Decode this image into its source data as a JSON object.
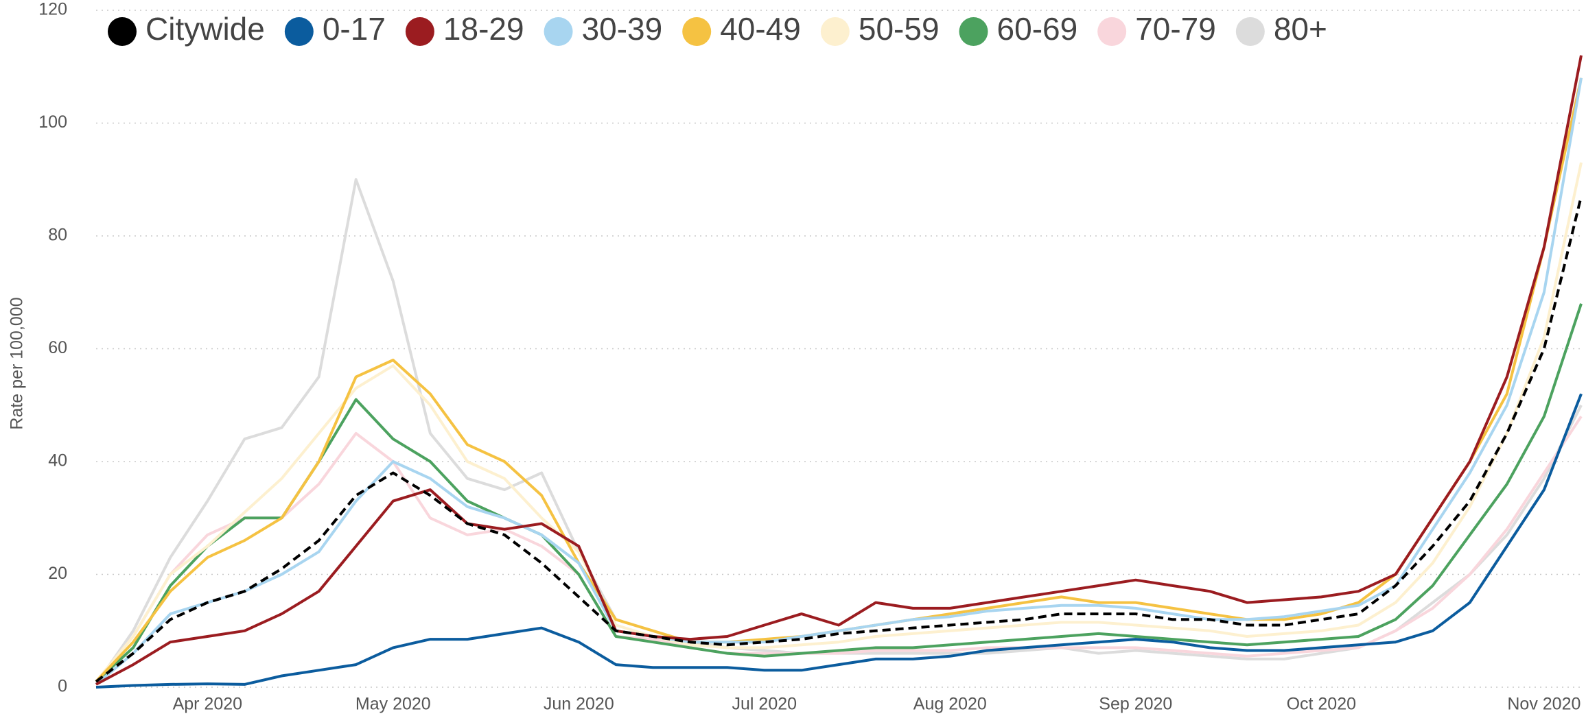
{
  "chart_data": {
    "type": "line",
    "y_label": "Rate per 100,000",
    "categories": [
      null,
      null,
      null,
      "Apr 2020",
      null,
      null,
      null,
      null,
      "May 2020",
      null,
      null,
      null,
      null,
      "Jun 2020",
      null,
      null,
      null,
      null,
      "Jul 2020",
      null,
      null,
      null,
      null,
      "Aug 2020",
      null,
      null,
      null,
      null,
      "Sep 2020",
      null,
      null,
      null,
      null,
      "Oct 2020",
      null,
      null,
      null,
      null,
      null,
      "Nov 2020",
      null
    ],
    "ylim": [
      0,
      120
    ],
    "yticks": [
      0,
      20,
      40,
      60,
      80,
      100,
      120
    ],
    "grid": true,
    "series": [
      {
        "name": "Citywide",
        "color": "#000000",
        "dashed": true,
        "values": [
          1,
          6,
          12,
          15,
          17,
          21,
          26,
          34,
          38,
          34,
          29,
          27,
          22,
          16,
          10,
          9,
          8,
          7.5,
          8,
          8.5,
          9.5,
          10,
          10.5,
          11,
          11.5,
          12,
          13,
          13,
          13,
          12,
          12,
          11,
          11,
          12,
          13,
          18,
          25,
          33,
          45,
          60,
          87
        ]
      },
      {
        "name": "0-17",
        "color": "#0b5c9e",
        "values": [
          0,
          0.3,
          0.5,
          0.6,
          0.5,
          2,
          3,
          4,
          7,
          8.5,
          8.5,
          9.5,
          10.5,
          8,
          4,
          3.5,
          3.5,
          3.5,
          3,
          3,
          4,
          5,
          5,
          5.5,
          6.5,
          7,
          7.5,
          8,
          8.5,
          8,
          7,
          6.5,
          6.5,
          7,
          7.5,
          8,
          10,
          15,
          25,
          35,
          52
        ]
      },
      {
        "name": "18-29",
        "color": "#9b1c20",
        "values": [
          0.5,
          4,
          8,
          9,
          10,
          13,
          17,
          25,
          33,
          35,
          29,
          28,
          29,
          25,
          10,
          9,
          8.5,
          9,
          11,
          13,
          11,
          15,
          14,
          14,
          15,
          16,
          17,
          18,
          19,
          18,
          17,
          15,
          15.5,
          16,
          17,
          20,
          30,
          40,
          55,
          78,
          112
        ]
      },
      {
        "name": "30-39",
        "color": "#a8d5f0",
        "values": [
          0.5,
          6,
          13,
          15,
          17,
          20,
          24,
          33,
          40,
          37,
          32,
          30,
          27,
          22,
          10,
          9,
          8,
          8,
          8,
          9,
          10,
          11,
          12,
          12.5,
          13.5,
          14,
          14.5,
          14.5,
          14,
          13,
          12,
          12,
          12.5,
          13.5,
          14.5,
          18,
          28,
          38,
          50,
          70,
          108
        ]
      },
      {
        "name": "40-49",
        "color": "#f5c242",
        "values": [
          1,
          8,
          17,
          23,
          26,
          30,
          40,
          55,
          58,
          52,
          43,
          40,
          34,
          22,
          12,
          10,
          8,
          8,
          8.5,
          9,
          10,
          11,
          12,
          13,
          14,
          15,
          16,
          15,
          15,
          14,
          13,
          12,
          12,
          13,
          15,
          20,
          30,
          40,
          52,
          78,
          108
        ]
      },
      {
        "name": "50-59",
        "color": "#fdf0cf",
        "values": [
          1,
          9,
          20,
          25,
          31,
          37,
          45,
          53,
          57,
          50,
          40,
          37,
          30,
          24,
          11,
          9,
          7.5,
          7,
          7,
          7.5,
          8,
          9,
          9.5,
          10,
          10.5,
          11,
          11.5,
          11.5,
          11,
          10.5,
          10,
          9,
          9.5,
          10,
          11,
          15,
          22,
          32,
          45,
          62,
          93
        ]
      },
      {
        "name": "60-69",
        "color": "#4ca25f",
        "values": [
          1,
          7,
          18,
          25,
          30,
          30,
          40,
          51,
          44,
          40,
          33,
          30,
          27,
          20,
          9,
          8,
          7,
          6,
          5.5,
          6,
          6.5,
          7,
          7,
          7.5,
          8,
          8.5,
          9,
          9.5,
          9,
          8.5,
          8,
          7.5,
          8,
          8.5,
          9,
          12,
          18,
          27,
          36,
          48,
          68
        ]
      },
      {
        "name": "70-79",
        "color": "#f9d6dc",
        "values": [
          1,
          9,
          20,
          27,
          30,
          30,
          36,
          45,
          40,
          30,
          27,
          28,
          25,
          20,
          9,
          8.5,
          7,
          6,
          6,
          6,
          6,
          6.5,
          6.5,
          6.5,
          7,
          7,
          7,
          7,
          7,
          6.5,
          6,
          5.5,
          6,
          6.5,
          7,
          10,
          14,
          20,
          28,
          38,
          48
        ]
      },
      {
        "name": "80+",
        "color": "#dcdcdc",
        "values": [
          0.5,
          10,
          23,
          33,
          44,
          46,
          55,
          90,
          72,
          45,
          37,
          35,
          38,
          24,
          12,
          10,
          8,
          7,
          6.5,
          6,
          6,
          6,
          6,
          6,
          6,
          6.5,
          7,
          6,
          6.5,
          6,
          5.5,
          5,
          5,
          6,
          7,
          10,
          15,
          20,
          27,
          37,
          50
        ]
      }
    ]
  }
}
